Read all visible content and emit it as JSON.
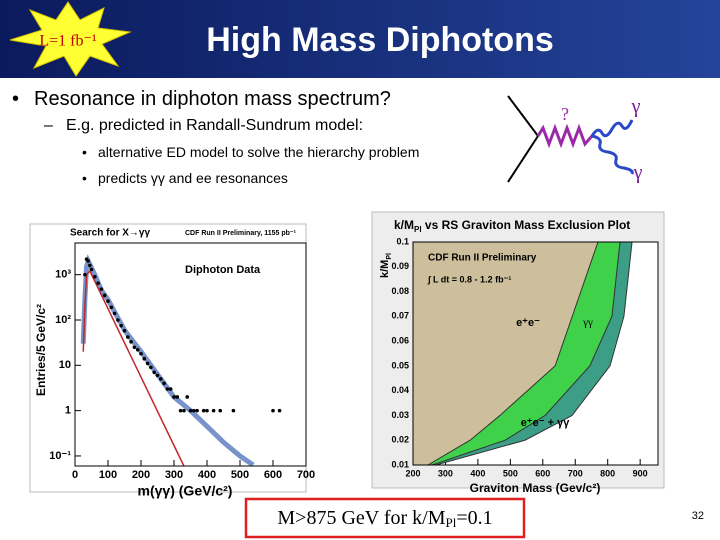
{
  "slide": {
    "badge": "L=1 fb⁻¹",
    "title": "High Mass Diphotons",
    "bullets": [
      {
        "level": 1,
        "text": "Resonance in diphoton mass spectrum?"
      },
      {
        "level": 2,
        "text": "E.g. predicted in Randall-Sundrum model:"
      },
      {
        "level": 3,
        "text": "alternative ED model to solve the hierarchy problem"
      },
      {
        "level": 3,
        "text": "predicts γγ and ee resonances"
      }
    ],
    "conclusion": [
      "M>875 GeV for k/M",
      "Pl",
      "=0.1"
    ],
    "page_number": "32"
  },
  "diagram": {
    "labels": [
      "?",
      "γ",
      "γ"
    ]
  },
  "chart_data": [
    {
      "type": "line",
      "title": "Search for X→γγ",
      "subtitle": "CDF Run II Preliminary, 1155 pb⁻¹",
      "annotation": "Diphoton Data",
      "x_label": "m(γγ) (GeV/c²)",
      "y_label": "Entries/5 GeV/c²",
      "log_y": true,
      "xlim": [
        0,
        700
      ],
      "ylim": [
        0.06,
        5000
      ],
      "xticks": [
        0,
        100,
        200,
        300,
        400,
        500,
        600,
        700
      ],
      "yticks": [
        {
          "value": 0.1,
          "label": "10⁻¹"
        },
        1,
        10,
        {
          "value": 100,
          "label": "10²"
        },
        {
          "value": 1000,
          "label": "10³"
        }
      ],
      "series": [
        {
          "color": "#4a6fb8",
          "width": 5,
          "x": [
            25,
            30,
            35,
            40,
            60,
            80,
            100,
            150,
            200,
            250,
            300,
            350,
            400,
            450,
            500,
            540
          ],
          "values": [
            30,
            300,
            1500,
            2000,
            1000,
            450,
            280,
            60,
            20,
            6.3,
            2,
            1,
            0.45,
            0.2,
            0.1,
            0.063
          ]
        },
        {
          "color": "#c0282d",
          "width": 1.5,
          "x": [
            25,
            30,
            35,
            45,
            100,
            200,
            300,
            330
          ],
          "values": [
            20,
            200,
            1000,
            1200,
            178,
            5.5,
            0.17,
            0.06
          ]
        },
        {
          "color": "#000000",
          "marker": "circle",
          "x": [
            30,
            35,
            40,
            45,
            50,
            60,
            70,
            80,
            90,
            100,
            110,
            120,
            130,
            140,
            150,
            160,
            170,
            180,
            190,
            200,
            210,
            220,
            230,
            240,
            250,
            260,
            270,
            280,
            290,
            300,
            310,
            320,
            330,
            340,
            350,
            360,
            370,
            390,
            400,
            420,
            440,
            480,
            600,
            620
          ],
          "values": [
            1000,
            2200,
            2000,
            1600,
            1300,
            900,
            650,
            480,
            350,
            260,
            190,
            140,
            100,
            75,
            58,
            42,
            33,
            25,
            22,
            18,
            14,
            11,
            9,
            7,
            6,
            5,
            4,
            3,
            3,
            2,
            2,
            1,
            1,
            2,
            1,
            1,
            1,
            1,
            1,
            1,
            1,
            1,
            1,
            1
          ]
        }
      ]
    },
    {
      "type": "area",
      "title": [
        "k/M",
        "Pl",
        " vs RS Graviton Mass Exclusion Plot"
      ],
      "annotations": [
        "CDF Run II Preliminary",
        "∫ L dt =  0.8 - 1.2 fb⁻¹"
      ],
      "x_label": "Graviton Mass (Gev/c²)",
      "y_label": [
        "k/M",
        "Pl"
      ],
      "xlim": [
        200,
        955
      ],
      "ylim": [
        0.01,
        0.1
      ],
      "xticks": [
        200,
        300,
        400,
        500,
        600,
        700,
        800,
        900
      ],
      "yticks": [
        0.01,
        0.02,
        0.03,
        0.04,
        0.05,
        0.06,
        0.07,
        0.08,
        0.09,
        0.1
      ],
      "series": [
        {
          "name": "e⁺e⁻",
          "color": "#cdbf9c",
          "x": [
            246,
            376,
            468,
            638,
            770
          ],
          "values": [
            0.01,
            0.02,
            0.03,
            0.05,
            0.1
          ]
        },
        {
          "name": "γγ",
          "color": "#3fd14a",
          "x": [
            259,
            484,
            607,
            745,
            813,
            838
          ],
          "values": [
            0.01,
            0.02,
            0.03,
            0.05,
            0.07,
            0.1
          ]
        },
        {
          "name": "e⁺e⁻ + γγ",
          "color": "#3c9e86",
          "x": [
            271,
            545,
            690,
            807,
            850,
            875
          ],
          "values": [
            0.01,
            0.02,
            0.03,
            0.05,
            0.07,
            0.1
          ]
        }
      ]
    }
  ]
}
